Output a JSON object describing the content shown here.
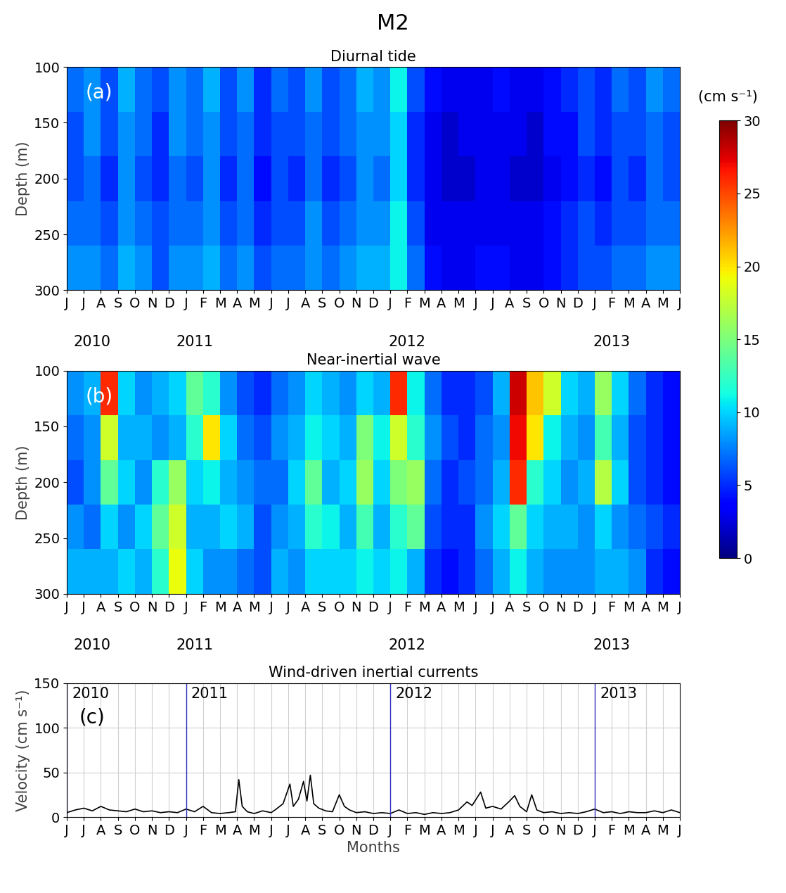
{
  "title": "M2",
  "colorbar": {
    "range": [
      0,
      30
    ],
    "ticks": [
      0,
      5,
      10,
      15,
      20,
      25,
      30
    ],
    "label": "(cm s⁻¹)"
  },
  "chart_data": [
    {
      "type": "heatmap",
      "title": "Diurnal tide",
      "panel_label": "(a)",
      "ylabel": "Depth (m)",
      "x_edges": [
        0,
        1,
        2,
        3,
        4,
        5,
        6,
        7,
        8,
        9,
        10,
        11,
        12,
        13,
        14,
        15,
        16,
        17,
        18,
        19,
        20,
        21,
        22,
        23,
        24,
        25,
        26,
        27,
        28,
        29,
        30,
        31,
        32,
        33,
        34,
        35,
        36
      ],
      "y_edges": [
        100,
        140,
        180,
        220,
        260,
        300
      ],
      "cells": [
        [
          7,
          8,
          6,
          9,
          7,
          6,
          8,
          7,
          9,
          6,
          8,
          5,
          7,
          6,
          8,
          6,
          7,
          9,
          8,
          11,
          6,
          4,
          3,
          3,
          3,
          4,
          3,
          3,
          4,
          5,
          6,
          5,
          7,
          6,
          8,
          7
        ],
        [
          6,
          8,
          6,
          8,
          7,
          5,
          8,
          7,
          8,
          6,
          7,
          5,
          6,
          6,
          7,
          6,
          7,
          8,
          8,
          10,
          5,
          3,
          2,
          3,
          3,
          3,
          3,
          2,
          4,
          4,
          6,
          5,
          6,
          6,
          7,
          6
        ],
        [
          6,
          7,
          5,
          8,
          6,
          5,
          7,
          6,
          8,
          5,
          7,
          4,
          6,
          5,
          7,
          5,
          6,
          8,
          7,
          10,
          5,
          3,
          2,
          2,
          3,
          3,
          2,
          2,
          3,
          4,
          5,
          4,
          6,
          5,
          7,
          6
        ],
        [
          7,
          7,
          6,
          8,
          7,
          6,
          7,
          7,
          8,
          6,
          7,
          5,
          6,
          6,
          8,
          6,
          7,
          8,
          8,
          11,
          6,
          3,
          3,
          3,
          3,
          3,
          3,
          3,
          4,
          5,
          6,
          5,
          6,
          6,
          7,
          7
        ],
        [
          8,
          8,
          7,
          9,
          8,
          6,
          8,
          8,
          9,
          7,
          8,
          6,
          7,
          7,
          8,
          7,
          8,
          9,
          9,
          11,
          7,
          4,
          3,
          3,
          4,
          4,
          3,
          3,
          4,
          5,
          6,
          6,
          7,
          7,
          8,
          8
        ]
      ],
      "xlim": [
        0,
        36
      ],
      "ylim": [
        300,
        100
      ],
      "yticks": [
        100,
        150,
        200,
        250,
        300
      ],
      "xticks": [
        {
          "value": 0,
          "label": "J"
        },
        {
          "value": 1,
          "label": "J"
        },
        {
          "value": 2,
          "label": "A"
        },
        {
          "value": 3,
          "label": "S"
        },
        {
          "value": 4,
          "label": "O"
        },
        {
          "value": 5,
          "label": "N"
        },
        {
          "value": 6,
          "label": "D"
        },
        {
          "value": 7,
          "label": "J"
        },
        {
          "value": 8,
          "label": "F"
        },
        {
          "value": 9,
          "label": "M"
        },
        {
          "value": 10,
          "label": "A"
        },
        {
          "value": 11,
          "label": "M"
        },
        {
          "value": 12,
          "label": "J"
        },
        {
          "value": 13,
          "label": "J"
        },
        {
          "value": 14,
          "label": "A"
        },
        {
          "value": 15,
          "label": "S"
        },
        {
          "value": 16,
          "label": "O"
        },
        {
          "value": 17,
          "label": "N"
        },
        {
          "value": 18,
          "label": "D"
        },
        {
          "value": 19,
          "label": "J"
        },
        {
          "value": 20,
          "label": "F"
        },
        {
          "value": 21,
          "label": "M"
        },
        {
          "value": 22,
          "label": "A"
        },
        {
          "value": 23,
          "label": "M"
        },
        {
          "value": 24,
          "label": "J"
        },
        {
          "value": 25,
          "label": "J"
        },
        {
          "value": 26,
          "label": "A"
        },
        {
          "value": 27,
          "label": "S"
        },
        {
          "value": 28,
          "label": "O"
        },
        {
          "value": 29,
          "label": "N"
        },
        {
          "value": 30,
          "label": "D"
        },
        {
          "value": 31,
          "label": "J"
        },
        {
          "value": 32,
          "label": "F"
        },
        {
          "value": 33,
          "label": "M"
        },
        {
          "value": 34,
          "label": "A"
        },
        {
          "value": 35,
          "label": "M"
        },
        {
          "value": 36,
          "label": "J"
        }
      ],
      "year_labels": [
        {
          "value": 1.5,
          "label": "2010"
        },
        {
          "value": 7.5,
          "label": "2011"
        },
        {
          "value": 20,
          "label": "2012"
        },
        {
          "value": 32,
          "label": "2013"
        }
      ]
    },
    {
      "type": "heatmap",
      "title": "Near-inertial wave",
      "panel_label": "(b)",
      "ylabel": "Depth (m)",
      "x_edges": [
        0,
        1,
        2,
        3,
        4,
        5,
        6,
        7,
        8,
        9,
        10,
        11,
        12,
        13,
        14,
        15,
        16,
        17,
        18,
        19,
        20,
        21,
        22,
        23,
        24,
        25,
        26,
        27,
        28,
        29,
        30,
        31,
        32,
        33,
        34,
        35,
        36
      ],
      "y_edges": [
        100,
        140,
        180,
        220,
        260,
        300
      ],
      "cells": [
        [
          8,
          9,
          26,
          10,
          8,
          9,
          10,
          14,
          12,
          8,
          6,
          5,
          7,
          8,
          10,
          9,
          8,
          10,
          9,
          26,
          11,
          7,
          5,
          5,
          6,
          9,
          28,
          21,
          18,
          10,
          9,
          16,
          10,
          7,
          5,
          4
        ],
        [
          7,
          8,
          18,
          9,
          9,
          8,
          9,
          12,
          20,
          10,
          7,
          6,
          8,
          9,
          11,
          10,
          9,
          15,
          11,
          18,
          12,
          8,
          6,
          5,
          7,
          8,
          27,
          20,
          11,
          9,
          8,
          13,
          9,
          6,
          5,
          4
        ],
        [
          6,
          8,
          14,
          10,
          8,
          12,
          16,
          10,
          11,
          9,
          8,
          7,
          7,
          10,
          14,
          9,
          10,
          16,
          10,
          15,
          16,
          7,
          5,
          6,
          7,
          9,
          26,
          12,
          10,
          8,
          9,
          17,
          10,
          6,
          5,
          4
        ],
        [
          8,
          7,
          10,
          8,
          10,
          14,
          18,
          9,
          9,
          10,
          9,
          6,
          8,
          9,
          12,
          11,
          9,
          13,
          9,
          12,
          14,
          6,
          5,
          5,
          8,
          10,
          14,
          10,
          9,
          9,
          8,
          10,
          8,
          7,
          6,
          5
        ],
        [
          9,
          9,
          9,
          10,
          9,
          12,
          19,
          10,
          8,
          8,
          7,
          6,
          9,
          8,
          10,
          10,
          10,
          11,
          10,
          11,
          9,
          5,
          4,
          5,
          7,
          9,
          11,
          9,
          8,
          8,
          8,
          9,
          9,
          8,
          5,
          4
        ]
      ],
      "xlim": [
        0,
        36
      ],
      "ylim": [
        300,
        100
      ],
      "yticks": [
        100,
        150,
        200,
        250,
        300
      ],
      "xticks": [
        {
          "value": 0,
          "label": "J"
        },
        {
          "value": 1,
          "label": "J"
        },
        {
          "value": 2,
          "label": "A"
        },
        {
          "value": 3,
          "label": "S"
        },
        {
          "value": 4,
          "label": "O"
        },
        {
          "value": 5,
          "label": "N"
        },
        {
          "value": 6,
          "label": "D"
        },
        {
          "value": 7,
          "label": "J"
        },
        {
          "value": 8,
          "label": "F"
        },
        {
          "value": 9,
          "label": "M"
        },
        {
          "value": 10,
          "label": "A"
        },
        {
          "value": 11,
          "label": "M"
        },
        {
          "value": 12,
          "label": "J"
        },
        {
          "value": 13,
          "label": "J"
        },
        {
          "value": 14,
          "label": "A"
        },
        {
          "value": 15,
          "label": "S"
        },
        {
          "value": 16,
          "label": "O"
        },
        {
          "value": 17,
          "label": "N"
        },
        {
          "value": 18,
          "label": "D"
        },
        {
          "value": 19,
          "label": "J"
        },
        {
          "value": 20,
          "label": "F"
        },
        {
          "value": 21,
          "label": "M"
        },
        {
          "value": 22,
          "label": "A"
        },
        {
          "value": 23,
          "label": "M"
        },
        {
          "value": 24,
          "label": "J"
        },
        {
          "value": 25,
          "label": "J"
        },
        {
          "value": 26,
          "label": "A"
        },
        {
          "value": 27,
          "label": "S"
        },
        {
          "value": 28,
          "label": "O"
        },
        {
          "value": 29,
          "label": "N"
        },
        {
          "value": 30,
          "label": "D"
        },
        {
          "value": 31,
          "label": "J"
        },
        {
          "value": 32,
          "label": "F"
        },
        {
          "value": 33,
          "label": "M"
        },
        {
          "value": 34,
          "label": "A"
        },
        {
          "value": 35,
          "label": "M"
        },
        {
          "value": 36,
          "label": "J"
        }
      ],
      "year_labels": [
        {
          "value": 1.5,
          "label": "2010"
        },
        {
          "value": 7.5,
          "label": "2011"
        },
        {
          "value": 20,
          "label": "2012"
        },
        {
          "value": 32,
          "label": "2013"
        }
      ]
    },
    {
      "type": "line",
      "title": "Wind-driven inertial currents",
      "panel_label": "(c)",
      "xlabel": "Months",
      "ylabel": "Velocity (cm s⁻¹)",
      "color": "#000000",
      "grid": true,
      "x": [
        0,
        0.5,
        1,
        1.5,
        2,
        2.5,
        3,
        3.5,
        4,
        4.5,
        5,
        5.5,
        6,
        6.5,
        7,
        7.5,
        8,
        8.5,
        9,
        9.5,
        9.9,
        10.1,
        10.3,
        10.6,
        11,
        11.5,
        12,
        12.3,
        12.7,
        13.1,
        13.3,
        13.6,
        13.9,
        14.1,
        14.3,
        14.5,
        14.8,
        15.2,
        15.6,
        16,
        16.3,
        16.6,
        17,
        17.5,
        18,
        18.5,
        19,
        19.5,
        20,
        20.5,
        21,
        21.5,
        22,
        22.5,
        23,
        23.5,
        23.8,
        24.3,
        24.6,
        25,
        25.5,
        26,
        26.3,
        26.6,
        27,
        27.3,
        27.6,
        28,
        28.5,
        29,
        29.5,
        30,
        30.5,
        31,
        31.5,
        32,
        32.5,
        33,
        33.5,
        34,
        34.5,
        35,
        35.5,
        36
      ],
      "values": [
        5,
        8,
        10,
        7,
        12,
        8,
        7,
        6,
        9,
        6,
        7,
        5,
        6,
        5,
        9,
        6,
        12,
        5,
        4,
        5,
        6,
        42,
        12,
        6,
        4,
        7,
        5,
        9,
        15,
        37,
        12,
        20,
        40,
        18,
        47,
        15,
        10,
        7,
        6,
        25,
        12,
        8,
        5,
        6,
        4,
        5,
        4,
        8,
        4,
        5,
        3,
        5,
        4,
        5,
        8,
        17,
        13,
        28,
        10,
        12,
        9,
        18,
        24,
        12,
        6,
        25,
        8,
        5,
        6,
        4,
        5,
        4,
        6,
        9,
        5,
        6,
        4,
        6,
        5,
        5,
        7,
        5,
        8,
        5
      ],
      "xlim": [
        0,
        36
      ],
      "ylim": [
        0,
        150
      ],
      "yticks": [
        0,
        50,
        100,
        150
      ],
      "xticks": [
        {
          "value": 0,
          "label": "J"
        },
        {
          "value": 1,
          "label": "J"
        },
        {
          "value": 2,
          "label": "A"
        },
        {
          "value": 3,
          "label": "S"
        },
        {
          "value": 4,
          "label": "O"
        },
        {
          "value": 5,
          "label": "N"
        },
        {
          "value": 6,
          "label": "D"
        },
        {
          "value": 7,
          "label": "J"
        },
        {
          "value": 8,
          "label": "F"
        },
        {
          "value": 9,
          "label": "M"
        },
        {
          "value": 10,
          "label": "A"
        },
        {
          "value": 11,
          "label": "M"
        },
        {
          "value": 12,
          "label": "J"
        },
        {
          "value": 13,
          "label": "J"
        },
        {
          "value": 14,
          "label": "A"
        },
        {
          "value": 15,
          "label": "S"
        },
        {
          "value": 16,
          "label": "O"
        },
        {
          "value": 17,
          "label": "N"
        },
        {
          "value": 18,
          "label": "D"
        },
        {
          "value": 19,
          "label": "J"
        },
        {
          "value": 20,
          "label": "F"
        },
        {
          "value": 21,
          "label": "M"
        },
        {
          "value": 22,
          "label": "A"
        },
        {
          "value": 23,
          "label": "M"
        },
        {
          "value": 24,
          "label": "J"
        },
        {
          "value": 25,
          "label": "J"
        },
        {
          "value": 26,
          "label": "A"
        },
        {
          "value": 27,
          "label": "S"
        },
        {
          "value": 28,
          "label": "O"
        },
        {
          "value": 29,
          "label": "N"
        },
        {
          "value": 30,
          "label": "D"
        },
        {
          "value": 31,
          "label": "J"
        },
        {
          "value": 32,
          "label": "F"
        },
        {
          "value": 33,
          "label": "M"
        },
        {
          "value": 34,
          "label": "A"
        },
        {
          "value": 35,
          "label": "M"
        },
        {
          "value": 36,
          "label": "J"
        }
      ],
      "year_lines": [
        {
          "value": 0,
          "label": "2010"
        },
        {
          "value": 7,
          "label": "2011"
        },
        {
          "value": 19,
          "label": "2012"
        },
        {
          "value": 31,
          "label": "2013"
        }
      ]
    }
  ]
}
